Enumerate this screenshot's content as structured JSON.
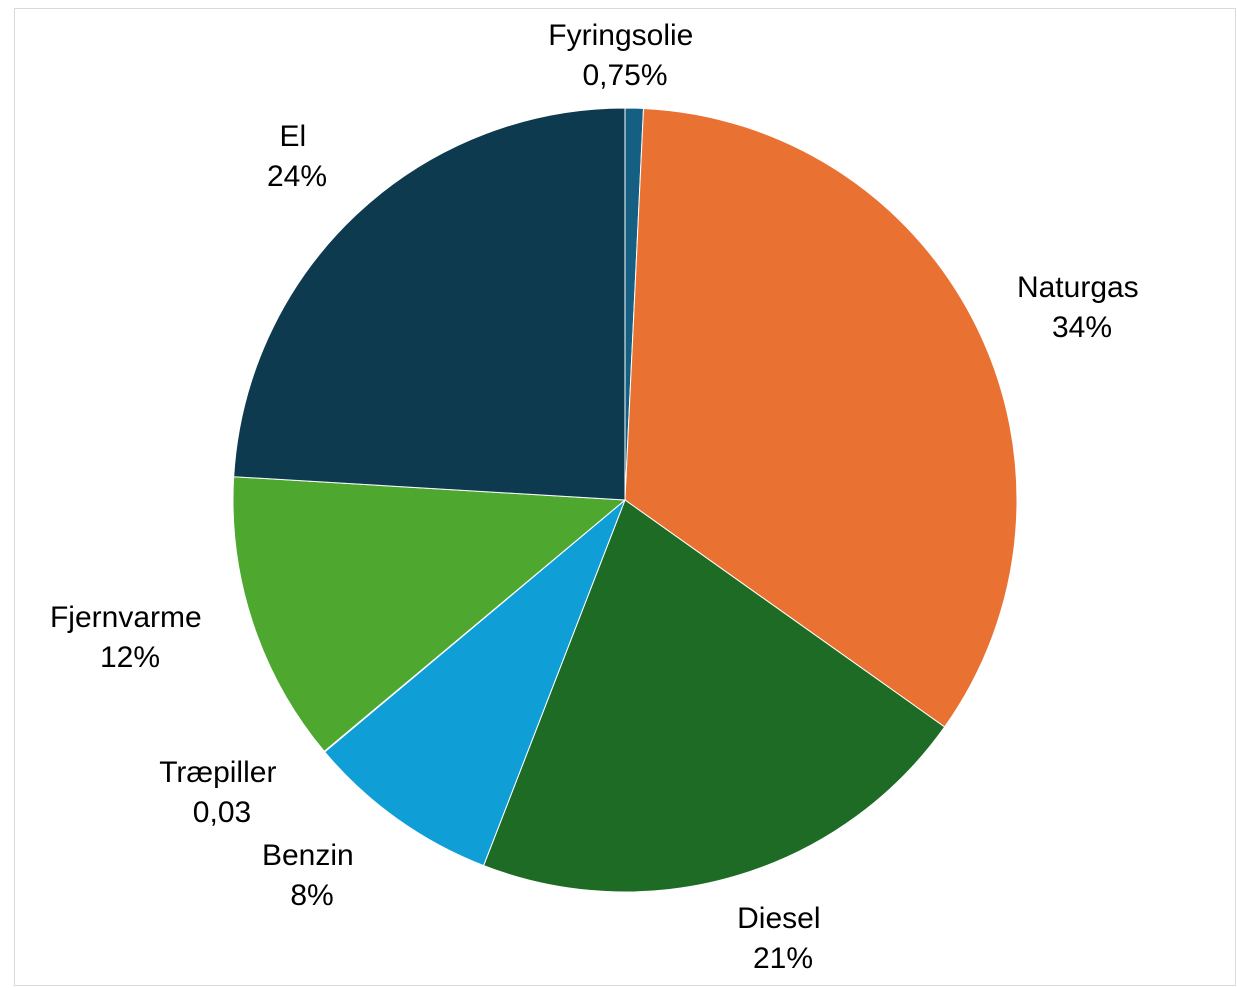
{
  "chart_data": {
    "type": "pie",
    "title": "",
    "start_angle_deg": 0,
    "direction": "clockwise",
    "slices": [
      {
        "name": "Fyringsolie",
        "value": 0.75,
        "label_line1": "Fyringsolie",
        "label_line2": "0,75%",
        "color": "#156082"
      },
      {
        "name": "Naturgas",
        "value": 34,
        "label_line1": "Naturgas",
        "label_line2": "34%",
        "color": "#E97132"
      },
      {
        "name": "Diesel",
        "value": 21,
        "label_line1": "Diesel",
        "label_line2": "21%",
        "color": "#1D6B24"
      },
      {
        "name": "Benzin",
        "value": 8,
        "label_line1": "Benzin",
        "label_line2": "8%",
        "color": "#0F9ED5"
      },
      {
        "name": "Træpiller",
        "value": 0.03,
        "label_line1": "Træpiller",
        "label_line2": "0,03",
        "color": "#A02B93"
      },
      {
        "name": "Fjernvarme",
        "value": 12,
        "label_line1": "Fjernvarme",
        "label_line2": "12%",
        "color": "#4EA72E"
      },
      {
        "name": "El",
        "value": 24,
        "label_line1": "El",
        "label_line2": "24%",
        "color": "#0E3A50"
      }
    ]
  }
}
